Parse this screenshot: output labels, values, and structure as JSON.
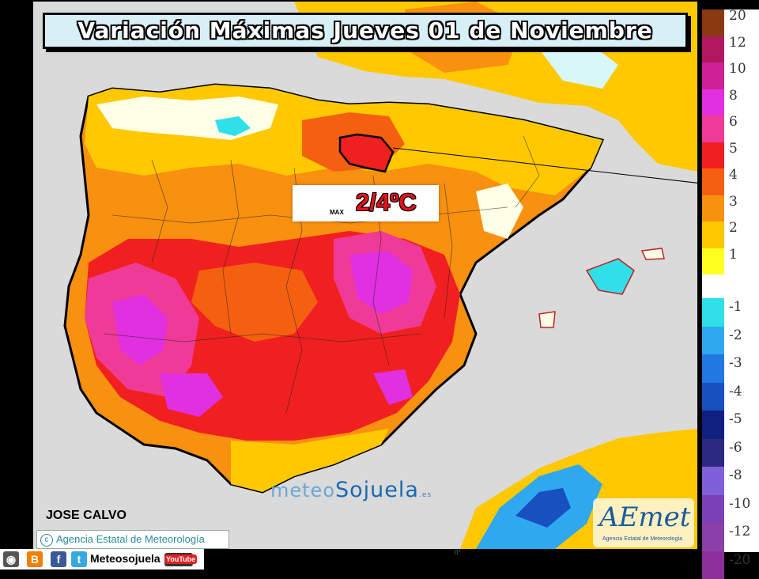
{
  "title": "Variación Máximas Jueves 01 de Noviembre",
  "callout": {
    "value_text": "2/4ºC",
    "max_label": "MAX"
  },
  "credits": {
    "author": "JOSE CALVO",
    "agency": "Agencia Estatal de Meteorología",
    "watermark_part1": "meteo",
    "watermark_part2": "Sojuela",
    "watermark_tld": ".es",
    "logo_text": "AEmet",
    "logo_subtitle": "Agencia Estatal de Meteorología",
    "bottom_coord": "0°"
  },
  "social": {
    "name": "Meteosojuela",
    "youtube": "YouTube"
  },
  "legend": {
    "bands": [
      {
        "label": "20",
        "color": "#8a3a10"
      },
      {
        "label": "12",
        "color": "#b01860"
      },
      {
        "label": "10",
        "color": "#d02098"
      },
      {
        "label": "8",
        "color": "#e030e0"
      },
      {
        "label": "6",
        "color": "#f03a98"
      },
      {
        "label": "5",
        "color": "#f02020"
      },
      {
        "label": "4",
        "color": "#f56010"
      },
      {
        "label": "3",
        "color": "#f89010"
      },
      {
        "label": "2",
        "color": "#ffc800"
      },
      {
        "label": "1",
        "color": "#ffff20"
      },
      {
        "label": "-1",
        "color": "#30e0e8"
      },
      {
        "label": "-2",
        "color": "#30a8f0"
      },
      {
        "label": "-3",
        "color": "#2078e0"
      },
      {
        "label": "-4",
        "color": "#1850c0"
      },
      {
        "label": "-5",
        "color": "#102080"
      },
      {
        "label": "-6",
        "color": "#2a2880"
      },
      {
        "label": "-8",
        "color": "#8060d8"
      },
      {
        "label": "-10",
        "color": "#7a40b8"
      },
      {
        "label": "-12",
        "color": "#8a40a8"
      },
      {
        "label": "-20",
        "color": "#8a3098"
      }
    ]
  },
  "colors": {
    "sea": "#dadada",
    "land_orange": "#f89010",
    "land_dark_orange": "#f56010",
    "land_red": "#f02020",
    "land_pink": "#f03a98",
    "land_magenta": "#e030e0",
    "land_yellow": "#ffc800",
    "land_light_yellow": "#ffff20",
    "cool_cyan": "#30e0e8",
    "cool_blue": "#30a8f0"
  }
}
